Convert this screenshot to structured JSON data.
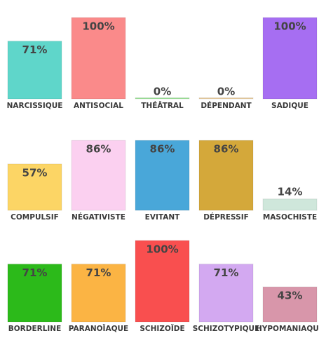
{
  "chart_data": [
    {
      "type": "bar",
      "categories": [
        "NARCISSIQUE",
        "ANTISOCIAL",
        "THÉÂTRAL",
        "DÉPENDANT",
        "SADIQUE"
      ],
      "values": [
        71,
        100,
        0,
        0,
        100
      ],
      "value_labels": [
        "71%",
        "100%",
        "0%",
        "0%",
        "100%"
      ],
      "colors": [
        "#5fd6ca",
        "#fa8a8a",
        "#9fe39a",
        "#e9cfa0",
        "#a66ef2"
      ],
      "ylim": [
        0,
        100
      ]
    },
    {
      "type": "bar",
      "categories": [
        "COMPULSIF",
        "NÉGATIVISTE",
        "EVITANT",
        "DÉPRESSIF",
        "MASOCHISTE"
      ],
      "values": [
        57,
        86,
        86,
        86,
        14
      ],
      "value_labels": [
        "57%",
        "86%",
        "86%",
        "86%",
        "14%"
      ],
      "colors": [
        "#fcd565",
        "#fbd0f0",
        "#49a7d9",
        "#d4a83a",
        "#cfe7db"
      ],
      "ylim": [
        0,
        100
      ]
    },
    {
      "type": "bar",
      "categories": [
        "BORDERLINE",
        "PARANOÏAQUE",
        "SCHIZOÏDE",
        "SCHIZOTYPIQUE",
        "HYPOMANIAQUE"
      ],
      "values": [
        71,
        71,
        100,
        71,
        43
      ],
      "value_labels": [
        "71%",
        "71%",
        "100%",
        "71%",
        "43%"
      ],
      "colors": [
        "#2cba1a",
        "#fbb444",
        "#f94f4f",
        "#d3a9f1",
        "#d896aa"
      ],
      "ylim": [
        0,
        100
      ]
    }
  ]
}
